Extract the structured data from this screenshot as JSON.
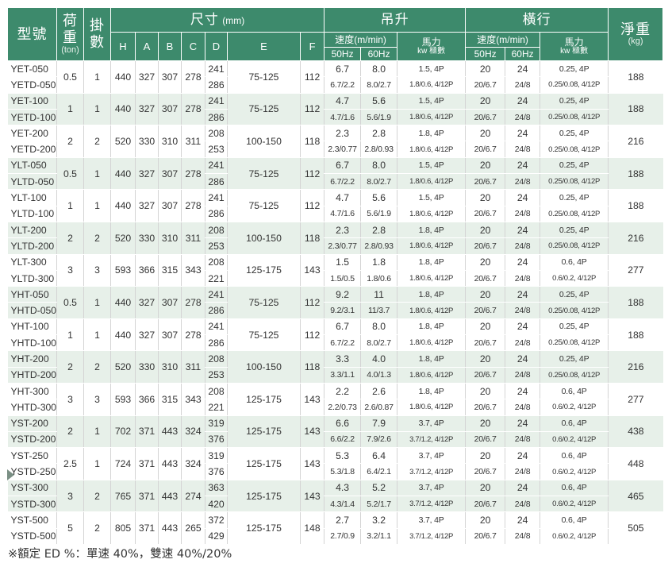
{
  "header": {
    "model": "型號",
    "load": "荷重",
    "load_unit": "(ton)",
    "falls": "掛數",
    "dims": "尺寸",
    "dims_unit": "(mm)",
    "dim_cols": [
      "H",
      "A",
      "B",
      "C",
      "D",
      "E",
      "F"
    ],
    "hoist": "吊升",
    "travel": "橫行",
    "weight": "淨重",
    "weight_unit": "(kg)",
    "speed": "速度(m/min)",
    "power": "馬力",
    "power_sub": "kw 極數",
    "hz50": "50Hz",
    "hz60": "60Hz"
  },
  "rows": [
    {
      "models": [
        "YET-050",
        "YETD-050"
      ],
      "load": "0.5",
      "falls": "1",
      "H": "440",
      "A": "327",
      "B": "307",
      "C": "278",
      "D": [
        "241",
        "286"
      ],
      "E": "75-125",
      "F": "112",
      "h50": [
        "6.7",
        "6.7/2.2"
      ],
      "h60": [
        "8.0",
        "8.0/2.7"
      ],
      "hp": [
        "1.5, 4P",
        "1.8/0.6, 4/12P"
      ],
      "t50": [
        "20",
        "20/6.7"
      ],
      "t60": [
        "24",
        "24/8"
      ],
      "tp": [
        "0.25, 4P",
        "0.25/0.08, 4/12P"
      ],
      "weight": "188"
    },
    {
      "models": [
        "YET-100",
        "YETD-100"
      ],
      "load": "1",
      "falls": "1",
      "H": "440",
      "A": "327",
      "B": "307",
      "C": "278",
      "D": [
        "241",
        "286"
      ],
      "E": "75-125",
      "F": "112",
      "h50": [
        "4.7",
        "4.7/1.6"
      ],
      "h60": [
        "5.6",
        "5.6/1.9"
      ],
      "hp": [
        "1.5, 4P",
        "1.8/0.6, 4/12P"
      ],
      "t50": [
        "20",
        "20/6.7"
      ],
      "t60": [
        "24",
        "24/8"
      ],
      "tp": [
        "0.25, 4P",
        "0.25/0.08, 4/12P"
      ],
      "weight": "188"
    },
    {
      "models": [
        "YET-200",
        "YETD-200"
      ],
      "load": "2",
      "falls": "2",
      "H": "520",
      "A": "330",
      "B": "310",
      "C": "311",
      "D": [
        "208",
        "253"
      ],
      "E": "100-150",
      "F": "118",
      "h50": [
        "2.3",
        "2.3/0.77"
      ],
      "h60": [
        "2.8",
        "2.8/0.93"
      ],
      "hp": [
        "1.8, 4P",
        "1.8/0.6, 4/12P"
      ],
      "t50": [
        "20",
        "20/6.7"
      ],
      "t60": [
        "24",
        "24/8"
      ],
      "tp": [
        "0.25, 4P",
        "0.25/0.08, 4/12P"
      ],
      "weight": "216"
    },
    {
      "models": [
        "YLT-050",
        "YLTD-050"
      ],
      "load": "0.5",
      "falls": "1",
      "H": "440",
      "A": "327",
      "B": "307",
      "C": "278",
      "D": [
        "241",
        "286"
      ],
      "E": "75-125",
      "F": "112",
      "h50": [
        "6.7",
        "6.7/2.2"
      ],
      "h60": [
        "8.0",
        "8.0/2.7"
      ],
      "hp": [
        "1.5, 4P",
        "1.8/0.6, 4/12P"
      ],
      "t50": [
        "20",
        "20/6.7"
      ],
      "t60": [
        "24",
        "24/8"
      ],
      "tp": [
        "0.25, 4P",
        "0.25/0.08, 4/12P"
      ],
      "weight": "188"
    },
    {
      "models": [
        "YLT-100",
        "YLTD-100"
      ],
      "load": "1",
      "falls": "1",
      "H": "440",
      "A": "327",
      "B": "307",
      "C": "278",
      "D": [
        "241",
        "286"
      ],
      "E": "75-125",
      "F": "112",
      "h50": [
        "4.7",
        "4.7/1.6"
      ],
      "h60": [
        "5.6",
        "5.6/1.9"
      ],
      "hp": [
        "1.5, 4P",
        "1.8/0.6, 4/12P"
      ],
      "t50": [
        "20",
        "20/6.7"
      ],
      "t60": [
        "24",
        "24/8"
      ],
      "tp": [
        "0.25, 4P",
        "0.25/0.08, 4/12P"
      ],
      "weight": "188"
    },
    {
      "models": [
        "YLT-200",
        "YLTD-200"
      ],
      "load": "2",
      "falls": "2",
      "H": "520",
      "A": "330",
      "B": "310",
      "C": "311",
      "D": [
        "208",
        "253"
      ],
      "E": "100-150",
      "F": "118",
      "h50": [
        "2.3",
        "2.3/0.77"
      ],
      "h60": [
        "2.8",
        "2.8/0.93"
      ],
      "hp": [
        "1.8, 4P",
        "1.8/0.6, 4/12P"
      ],
      "t50": [
        "20",
        "20/6.7"
      ],
      "t60": [
        "24",
        "24/8"
      ],
      "tp": [
        "0.25, 4P",
        "0.25/0.08, 4/12P"
      ],
      "weight": "216"
    },
    {
      "models": [
        "YLT-300",
        "YLTD-300"
      ],
      "load": "3",
      "falls": "3",
      "H": "593",
      "A": "366",
      "B": "315",
      "C": "343",
      "D": [
        "208",
        "221"
      ],
      "E": "125-175",
      "F": "143",
      "h50": [
        "1.5",
        "1.5/0.5"
      ],
      "h60": [
        "1.8",
        "1.8/0.6"
      ],
      "hp": [
        "1.8, 4P",
        "1.8/0.6, 4/12P"
      ],
      "t50": [
        "20",
        "20/6.7"
      ],
      "t60": [
        "24",
        "24/8"
      ],
      "tp": [
        "0.6, 4P",
        "0.6/0.2, 4/12P"
      ],
      "weight": "277"
    },
    {
      "models": [
        "YHT-050",
        "YHTD-050"
      ],
      "load": "0.5",
      "falls": "1",
      "H": "440",
      "A": "327",
      "B": "307",
      "C": "278",
      "D": [
        "241",
        "286"
      ],
      "E": "75-125",
      "F": "112",
      "h50": [
        "9.2",
        "9.2/3.1"
      ],
      "h60": [
        "11",
        "11/3.7"
      ],
      "hp": [
        "1.8, 4P",
        "1.8/0.6, 4/12P"
      ],
      "t50": [
        "20",
        "20/6.7"
      ],
      "t60": [
        "24",
        "24/8"
      ],
      "tp": [
        "0.25, 4P",
        "0.25/0.08, 4/12P"
      ],
      "weight": "188"
    },
    {
      "models": [
        "YHT-100",
        "YHTD-100"
      ],
      "load": "1",
      "falls": "1",
      "H": "440",
      "A": "327",
      "B": "307",
      "C": "278",
      "D": [
        "241",
        "286"
      ],
      "E": "75-125",
      "F": "112",
      "h50": [
        "6.7",
        "6.7/2.2"
      ],
      "h60": [
        "8.0",
        "8.0/2.7"
      ],
      "hp": [
        "1.8, 4P",
        "1.8/0.6, 4/12P"
      ],
      "t50": [
        "20",
        "20/6.7"
      ],
      "t60": [
        "24",
        "24/8"
      ],
      "tp": [
        "0.25, 4P",
        "0.25/0.08, 4/12P"
      ],
      "weight": "188"
    },
    {
      "models": [
        "YHT-200",
        "YHTD-200"
      ],
      "load": "2",
      "falls": "2",
      "H": "520",
      "A": "330",
      "B": "310",
      "C": "311",
      "D": [
        "208",
        "253"
      ],
      "E": "100-150",
      "F": "118",
      "h50": [
        "3.3",
        "3.3/1.1"
      ],
      "h60": [
        "4.0",
        "4.0/1.3"
      ],
      "hp": [
        "1.8, 4P",
        "1.8/0.6, 4/12P"
      ],
      "t50": [
        "20",
        "20/6.7"
      ],
      "t60": [
        "24",
        "24/8"
      ],
      "tp": [
        "0.25, 4P",
        "0.25/0.08, 4/12P"
      ],
      "weight": "216"
    },
    {
      "models": [
        "YHT-300",
        "YHTD-300"
      ],
      "load": "3",
      "falls": "3",
      "H": "593",
      "A": "366",
      "B": "315",
      "C": "343",
      "D": [
        "208",
        "221"
      ],
      "E": "125-175",
      "F": "143",
      "h50": [
        "2.2",
        "2.2/0.73"
      ],
      "h60": [
        "2.6",
        "2.6/0.87"
      ],
      "hp": [
        "1.8, 4P",
        "1.8/0.6, 4/12P"
      ],
      "t50": [
        "20",
        "20/6.7"
      ],
      "t60": [
        "24",
        "24/8"
      ],
      "tp": [
        "0.6, 4P",
        "0.6/0.2, 4/12P"
      ],
      "weight": "277"
    },
    {
      "models": [
        "YST-200",
        "YSTD-200"
      ],
      "load": "2",
      "falls": "1",
      "H": "702",
      "A": "371",
      "B": "443",
      "C": "324",
      "D": [
        "319",
        "376"
      ],
      "E": "125-175",
      "F": "143",
      "h50": [
        "6.6",
        "6.6/2.2"
      ],
      "h60": [
        "7.9",
        "7.9/2.6"
      ],
      "hp": [
        "3.7, 4P",
        "3.7/1.2, 4/12P"
      ],
      "t50": [
        "20",
        "20/6.7"
      ],
      "t60": [
        "24",
        "24/8"
      ],
      "tp": [
        "0.6, 4P",
        "0.6/0.2, 4/12P"
      ],
      "weight": "438"
    },
    {
      "models": [
        "YST-250",
        "YSTD-250"
      ],
      "load": "2.5",
      "falls": "1",
      "H": "724",
      "A": "371",
      "B": "443",
      "C": "324",
      "D": [
        "319",
        "376"
      ],
      "E": "125-175",
      "F": "143",
      "h50": [
        "5.3",
        "5.3/1.8"
      ],
      "h60": [
        "6.4",
        "6.4/2.1"
      ],
      "hp": [
        "3.7, 4P",
        "3.7/1.2, 4/12P"
      ],
      "t50": [
        "20",
        "20/6.7"
      ],
      "t60": [
        "24",
        "24/8"
      ],
      "tp": [
        "0.6, 4P",
        "0.6/0.2, 4/12P"
      ],
      "weight": "448"
    },
    {
      "models": [
        "YST-300",
        "YSTD-300"
      ],
      "load": "3",
      "falls": "2",
      "H": "765",
      "A": "371",
      "B": "443",
      "C": "274",
      "D": [
        "363",
        "420"
      ],
      "E": "125-175",
      "F": "143",
      "h50": [
        "4.3",
        "4.3/1.4"
      ],
      "h60": [
        "5.2",
        "5.2/1.7"
      ],
      "hp": [
        "3.7, 4P",
        "3.7/1.2, 4/12P"
      ],
      "t50": [
        "20",
        "20/6.7"
      ],
      "t60": [
        "24",
        "24/8"
      ],
      "tp": [
        "0.6, 4P",
        "0.6/0.2, 4/12P"
      ],
      "weight": "465"
    },
    {
      "models": [
        "YST-500",
        "YSTD-500"
      ],
      "load": "5",
      "falls": "2",
      "H": "805",
      "A": "371",
      "B": "443",
      "C": "265",
      "D": [
        "372",
        "429"
      ],
      "E": "125-175",
      "F": "148",
      "h50": [
        "2.7",
        "2.7/0.9"
      ],
      "h60": [
        "3.2",
        "3.2/1.1"
      ],
      "hp": [
        "3.7, 4P",
        "3.7/1.2, 4/12P"
      ],
      "t50": [
        "20",
        "20/6.7"
      ],
      "t60": [
        "24",
        "24/8"
      ],
      "tp": [
        "0.6, 4P",
        "0.6/0.2, 4/12P"
      ],
      "weight": "505"
    }
  ],
  "footnote": "※額定 ED %：單速 40%，雙速 40%/20%",
  "colors": {
    "header_bg": "#3d8a6c",
    "row_alt": "#e7f0e9",
    "row": "#ffffff"
  }
}
